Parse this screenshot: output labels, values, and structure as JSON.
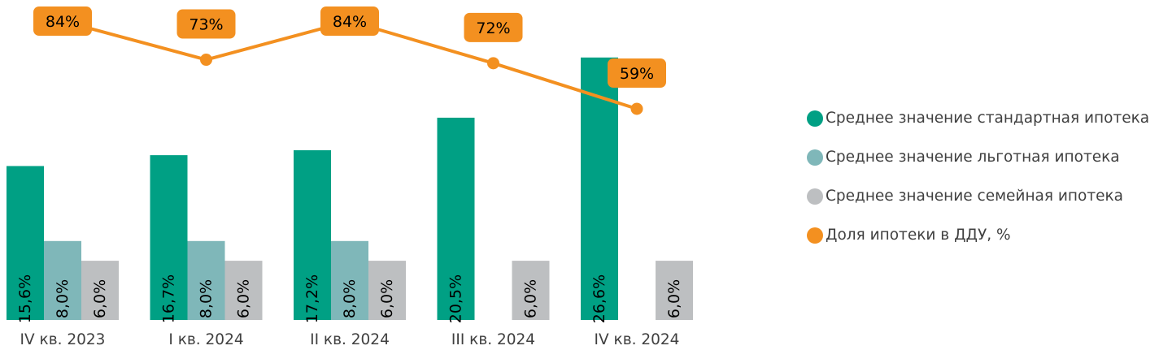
{
  "chart_data": {
    "type": "bar",
    "categories": [
      "IV кв. 2023",
      "I кв. 2024",
      "II кв. 2024",
      "III кв. 2024",
      "IV кв. 2024"
    ],
    "series": [
      {
        "name": "Среднее значение стандартная ипотека",
        "type": "bar",
        "color": "#00A084",
        "values": [
          15.6,
          16.7,
          17.2,
          20.5,
          26.6
        ],
        "labels": [
          "15,6%",
          "16,7%",
          "17,2%",
          "20,5%",
          "26,6%"
        ]
      },
      {
        "name": "Среднее значение льготная ипотека",
        "type": "bar",
        "color": "#7FB7B9",
        "values": [
          8.0,
          8.0,
          8.0,
          null,
          null
        ],
        "labels": [
          "8,0%",
          "8,0%",
          "8,0%",
          "",
          ""
        ]
      },
      {
        "name": "Среднее значение семейная ипотека",
        "type": "bar",
        "color": "#BDBFC1",
        "values": [
          6.0,
          6.0,
          6.0,
          6.0,
          6.0
        ],
        "labels": [
          "6,0%",
          "6,0%",
          "6,0%",
          "6,0%",
          "6,0%"
        ]
      },
      {
        "name": "Доля ипотеки в ДДУ, %",
        "type": "line",
        "color": "#F39020",
        "values": [
          84,
          73,
          84,
          72,
          59
        ],
        "labels": [
          "84%",
          "73%",
          "84%",
          "72%",
          "59%"
        ]
      }
    ],
    "legend_position": "right",
    "grid": false
  }
}
